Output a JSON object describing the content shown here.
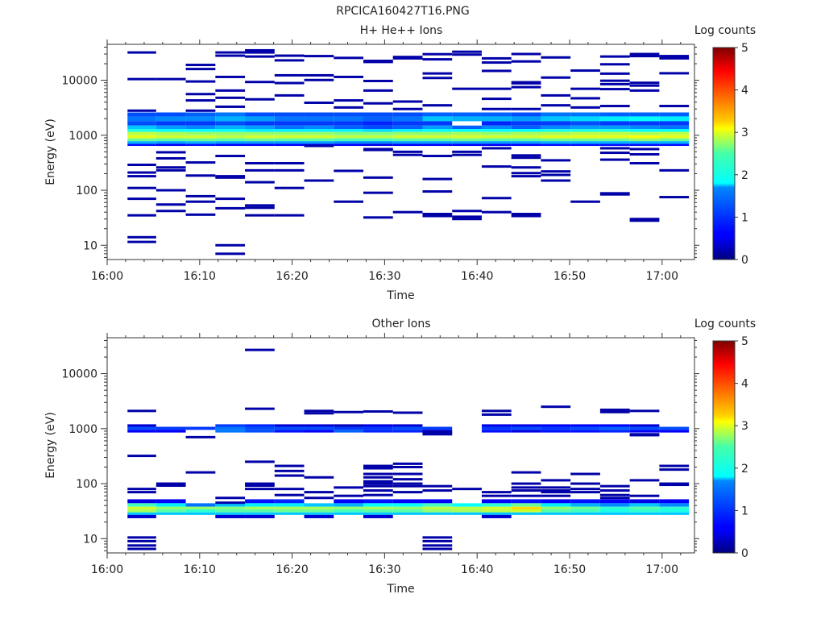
{
  "figure": {
    "title": "RPCICA160427T16.PNG"
  },
  "colorbar": {
    "label": "Log counts",
    "ticks": [
      0,
      1,
      2,
      3,
      4,
      5
    ]
  },
  "chart_data": [
    {
      "type": "heatmap",
      "title": "H+ He++ Ions",
      "xlabel": "Time",
      "ylabel": "Energy (eV)",
      "x_ticks": [
        "16:00",
        "16:10",
        "16:20",
        "16:30",
        "16:40",
        "16:50",
        "17:00"
      ],
      "y_ticks": [
        "10",
        "100",
        "1000",
        "10000"
      ],
      "ylim": [
        5.5,
        45000
      ],
      "yscale": "log",
      "color_scale": "log counts 0-5 (jet)",
      "time_bins_minutes": [
        [
          2.2,
          5.3
        ],
        [
          5.3,
          8.5
        ],
        [
          8.5,
          11.7
        ],
        [
          11.7,
          14.9
        ],
        [
          14.9,
          18.1
        ],
        [
          18.1,
          21.3
        ],
        [
          21.3,
          24.5
        ],
        [
          24.5,
          27.7
        ],
        [
          27.7,
          30.9
        ],
        [
          30.9,
          34.1
        ],
        [
          34.1,
          37.3
        ],
        [
          37.3,
          40.5
        ],
        [
          40.5,
          43.7
        ],
        [
          43.7,
          46.9
        ],
        [
          46.9,
          50.1
        ],
        [
          50.1,
          53.3
        ],
        [
          53.3,
          56.5
        ],
        [
          56.5,
          59.7
        ],
        [
          59.7,
          62.9
        ]
      ],
      "band_levels": [
        {
          "energy_range_eV": [
            2200,
            2600
          ],
          "level": [
            1.0,
            1.0,
            1.1,
            1.2,
            1.0,
            1.0,
            1.0,
            1.0,
            1.0,
            1.0,
            1.1,
            1.1,
            1.1,
            1.0,
            1.2,
            1.2,
            1.1,
            1.1,
            1.1
          ]
        },
        {
          "energy_range_eV": [
            1800,
            2200
          ],
          "level": [
            1.2,
            1.3,
            1.3,
            1.5,
            1.4,
            1.2,
            1.2,
            1.2,
            1.1,
            1.2,
            1.6,
            1.5,
            1.5,
            1.4,
            1.6,
            1.7,
            1.8,
            1.9,
            1.8
          ]
        },
        {
          "energy_range_eV": [
            1500,
            1800
          ],
          "level": [
            1.0,
            0.9,
            0.9,
            1.0,
            0.9,
            0.9,
            0.9,
            0.9,
            0.8,
            0.9,
            0.9,
            0.0,
            0.8,
            0.9,
            0.9,
            1.0,
            0.9,
            0.9,
            0.9
          ]
        },
        {
          "energy_range_eV": [
            1300,
            1500
          ],
          "level": [
            1.6,
            1.4,
            1.3,
            1.5,
            1.4,
            1.2,
            1.3,
            1.1,
            1.0,
            1.1,
            1.4,
            1.1,
            1.3,
            1.1,
            1.3,
            1.4,
            1.4,
            1.3,
            1.2
          ]
        },
        {
          "energy_range_eV": [
            1150,
            1300
          ],
          "level": [
            2.0,
            1.9,
            1.9,
            1.9,
            1.8,
            1.8,
            1.8,
            1.8,
            1.7,
            1.8,
            1.9,
            1.9,
            1.9,
            1.9,
            2.0,
            2.0,
            2.0,
            1.9,
            1.9
          ]
        },
        {
          "energy_range_eV": [
            1000,
            1150
          ],
          "level": [
            2.8,
            2.7,
            2.6,
            2.6,
            2.6,
            2.6,
            2.6,
            2.5,
            2.5,
            2.6,
            2.6,
            2.7,
            2.6,
            2.7,
            2.7,
            2.8,
            2.8,
            2.7,
            2.8
          ]
        },
        {
          "energy_range_eV": [
            880,
            1000
          ],
          "level": [
            3.0,
            2.9,
            2.9,
            2.8,
            2.9,
            2.9,
            2.9,
            2.8,
            2.8,
            2.9,
            2.9,
            2.9,
            2.9,
            2.9,
            3.0,
            3.0,
            3.0,
            3.1,
            3.0
          ]
        },
        {
          "energy_range_eV": [
            780,
            880
          ],
          "level": [
            2.4,
            2.3,
            2.4,
            2.3,
            2.4,
            2.3,
            2.3,
            2.2,
            2.2,
            2.3,
            2.3,
            2.4,
            2.3,
            2.3,
            2.4,
            2.4,
            2.4,
            2.6,
            2.4
          ]
        },
        {
          "energy_range_eV": [
            700,
            780
          ],
          "level": [
            1.5,
            1.4,
            1.5,
            1.4,
            1.4,
            1.4,
            1.4,
            1.3,
            1.3,
            1.4,
            1.4,
            1.4,
            1.4,
            1.4,
            1.5,
            1.5,
            1.5,
            1.5,
            1.5
          ]
        },
        {
          "energy_range_eV": [
            640,
            700
          ],
          "level": [
            0.7,
            0.6,
            0.7,
            0.6,
            0.6,
            0.6,
            0.6,
            0.6,
            0.5,
            0.6,
            0.6,
            0.6,
            0.6,
            0.6,
            0.7,
            0.7,
            0.7,
            0.7,
            0.7
          ]
        }
      ],
      "sparse_level": 0.2,
      "sparse_rows": [
        {
          "bin": 0,
          "energies_eV": [
            32000,
            10500,
            2800,
            290,
            210,
            180,
            110,
            70,
            35,
            14,
            11.5
          ]
        },
        {
          "bin": 1,
          "energies_eV": [
            10500,
            490,
            380,
            260,
            230,
            100,
            55,
            42
          ]
        },
        {
          "bin": 2,
          "energies_eV": [
            19000,
            16000,
            9500,
            5600,
            4300,
            2800,
            320,
            185,
            78,
            62,
            36
          ]
        },
        {
          "bin": 3,
          "energies_eV": [
            32000,
            28000,
            11500,
            6500,
            4800,
            3300,
            420,
            180,
            170,
            70,
            47,
            10,
            7
          ]
        },
        {
          "bin": 4,
          "energies_eV": [
            35000,
            32000,
            27000,
            9300,
            4500,
            310,
            230,
            140,
            53,
            48,
            35
          ]
        },
        {
          "bin": 5,
          "energies_eV": [
            28000,
            23000,
            12300,
            8900,
            5300,
            310,
            230,
            110,
            35
          ]
        },
        {
          "bin": 6,
          "energies_eV": [
            27500,
            12300,
            10100,
            3900,
            640,
            150
          ]
        },
        {
          "bin": 7,
          "energies_eV": [
            25500,
            11500,
            4300,
            3200,
            225,
            62
          ]
        },
        {
          "bin": 8,
          "energies_eV": [
            22500,
            21500,
            9700,
            6500,
            3800,
            560,
            540,
            170,
            90,
            32
          ]
        },
        {
          "bin": 9,
          "energies_eV": [
            26500,
            25000,
            4100,
            3000,
            500,
            440,
            40
          ]
        },
        {
          "bin": 10,
          "energies_eV": [
            29800,
            24000,
            13300,
            11000,
            3500,
            420,
            160,
            95,
            37,
            34
          ]
        },
        {
          "bin": 11,
          "energies_eV": [
            33000,
            29300,
            7000,
            500,
            440,
            42,
            33,
            30
          ]
        },
        {
          "bin": 12,
          "energies_eV": [
            25000,
            21000,
            14800,
            7000,
            4600,
            3000,
            580,
            270,
            72,
            40
          ]
        },
        {
          "bin": 13,
          "energies_eV": [
            30000,
            22000,
            9200,
            8800,
            7500,
            3000,
            430,
            390,
            260,
            205,
            180,
            37,
            34
          ]
        },
        {
          "bin": 14,
          "energies_eV": [
            26000,
            11200,
            5300,
            3500,
            350,
            220,
            190,
            150
          ]
        },
        {
          "bin": 15,
          "energies_eV": [
            15000,
            7000,
            4700,
            3200,
            62
          ]
        },
        {
          "bin": 16,
          "energies_eV": [
            27000,
            19500,
            13200,
            9800,
            8500,
            6900,
            3400,
            580,
            480,
            360,
            88,
            84
          ]
        },
        {
          "bin": 17,
          "energies_eV": [
            30000,
            27500,
            9000,
            8000,
            6500,
            560,
            450,
            310,
            30,
            28
          ]
        },
        {
          "bin": 18,
          "energies_eV": [
            27500,
            25000,
            13400,
            3400,
            230,
            75
          ]
        }
      ]
    },
    {
      "type": "heatmap",
      "title": "Other Ions",
      "xlabel": "Time",
      "ylabel": "Energy (eV)",
      "x_ticks": [
        "16:00",
        "16:10",
        "16:20",
        "16:30",
        "16:40",
        "16:50",
        "17:00"
      ],
      "y_ticks": [
        "10",
        "100",
        "1000",
        "10000"
      ],
      "ylim": [
        5.5,
        45000
      ],
      "yscale": "log",
      "color_scale": "log counts 0-5 (jet)",
      "time_bins_minutes": [
        [
          2.2,
          5.3
        ],
        [
          5.3,
          8.5
        ],
        [
          8.5,
          11.7
        ],
        [
          11.7,
          14.9
        ],
        [
          14.9,
          18.1
        ],
        [
          18.1,
          21.3
        ],
        [
          21.3,
          24.5
        ],
        [
          24.5,
          27.7
        ],
        [
          27.7,
          30.9
        ],
        [
          30.9,
          34.1
        ],
        [
          34.1,
          37.3
        ],
        [
          37.3,
          40.5
        ],
        [
          40.5,
          43.7
        ],
        [
          43.7,
          46.9
        ],
        [
          46.9,
          50.1
        ],
        [
          50.1,
          53.3
        ],
        [
          53.3,
          56.5
        ],
        [
          56.5,
          59.7
        ],
        [
          59.7,
          62.9
        ]
      ],
      "band_levels": [
        {
          "energy_range_eV": [
            1080,
            1200
          ],
          "level": [
            0.4,
            0.0,
            0.0,
            0.9,
            0.8,
            0.4,
            0.4,
            0.3,
            0.5,
            0.4,
            0.0,
            0.0,
            0.5,
            0.5,
            0.6,
            0.6,
            0.6,
            0.4,
            0.0
          ]
        },
        {
          "energy_range_eV": [
            950,
            1080
          ],
          "level": [
            1.0,
            0.9,
            0.9,
            1.2,
            1.0,
            1.0,
            1.0,
            0.9,
            0.9,
            1.0,
            0.9,
            0.0,
            0.9,
            1.0,
            0.9,
            1.0,
            1.1,
            1.0,
            1.0
          ]
        },
        {
          "energy_range_eV": [
            850,
            950
          ],
          "level": [
            0.6,
            0.6,
            0.0,
            1.2,
            1.0,
            0.7,
            0.6,
            1.1,
            0.8,
            0.8,
            0.3,
            0.0,
            0.7,
            0.5,
            0.7,
            0.7,
            0.8,
            0.6,
            0.6
          ]
        },
        {
          "energy_range_eV": [
            44,
            52
          ],
          "level": [
            0.5,
            0.6,
            0.0,
            0.0,
            0.7,
            0.8,
            0.0,
            0.6,
            0.7,
            0.6,
            0.6,
            0.0,
            0.6,
            0.7,
            0.6,
            0.7,
            0.6,
            0.5,
            0.6
          ]
        },
        {
          "energy_range_eV": [
            38,
            44
          ],
          "level": [
            2.2,
            1.8,
            1.2,
            1.6,
            1.8,
            1.8,
            1.6,
            1.5,
            1.9,
            1.9,
            2.2,
            1.9,
            2.1,
            2.4,
            1.8,
            1.5,
            1.3,
            1.6,
            1.3
          ]
        },
        {
          "energy_range_eV": [
            34,
            38
          ],
          "level": [
            2.9,
            2.6,
            2.6,
            2.5,
            2.7,
            2.7,
            2.7,
            2.6,
            2.7,
            2.6,
            2.8,
            2.8,
            2.9,
            3.3,
            2.6,
            2.4,
            2.1,
            2.3,
            2.1
          ]
        },
        {
          "energy_range_eV": [
            30,
            34
          ],
          "level": [
            2.7,
            2.3,
            2.1,
            2.3,
            2.3,
            2.4,
            2.4,
            2.2,
            2.3,
            2.3,
            2.6,
            2.7,
            2.8,
            2.9,
            2.3,
            2.2,
            2.0,
            2.1,
            2.0
          ]
        },
        {
          "energy_range_eV": [
            27,
            30
          ],
          "level": [
            1.6,
            1.6,
            1.6,
            1.6,
            1.6,
            1.6,
            1.6,
            1.6,
            1.6,
            1.6,
            1.6,
            1.6,
            1.6,
            1.6,
            1.6,
            1.6,
            1.6,
            1.6,
            1.6
          ]
        },
        {
          "energy_range_eV": [
            23.5,
            27
          ],
          "level": [
            0.4,
            0.0,
            0.0,
            0.4,
            0.4,
            0.0,
            0.4,
            0.0,
            0.4,
            0.0,
            0.0,
            0.0,
            0.4,
            0.0,
            0.0,
            0.0,
            0.0,
            0.0,
            0.0
          ]
        }
      ],
      "sparse_level": 0.2,
      "sparse_rows": [
        {
          "bin": 0,
          "energies_eV": [
            2100,
            320,
            80,
            70,
            10.5,
            9,
            7.5,
            6.5
          ]
        },
        {
          "bin": 1,
          "energies_eV": [
            100,
            92
          ]
        },
        {
          "bin": 2,
          "energies_eV": [
            700,
            160
          ]
        },
        {
          "bin": 3,
          "energies_eV": [
            55,
            45
          ]
        },
        {
          "bin": 4,
          "energies_eV": [
            27000,
            2300,
            250,
            100,
            92,
            80
          ]
        },
        {
          "bin": 5,
          "energies_eV": [
            210,
            170,
            140,
            80,
            62
          ]
        },
        {
          "bin": 6,
          "energies_eV": [
            2100,
            1900,
            130,
            70,
            55
          ]
        },
        {
          "bin": 7,
          "energies_eV": [
            2000,
            85,
            60
          ]
        },
        {
          "bin": 8,
          "energies_eV": [
            2050,
            210,
            190,
            150,
            130,
            110,
            100,
            90,
            75,
            62
          ]
        },
        {
          "bin": 9,
          "energies_eV": [
            1950,
            230,
            200,
            150,
            120,
            100,
            90,
            70
          ]
        },
        {
          "bin": 10,
          "energies_eV": [
            850,
            790,
            90,
            75,
            10.5,
            9,
            7.5,
            6.5
          ]
        },
        {
          "bin": 11,
          "energies_eV": [
            80
          ]
        },
        {
          "bin": 12,
          "energies_eV": [
            2100,
            1800,
            70,
            60
          ]
        },
        {
          "bin": 13,
          "energies_eV": [
            160,
            100,
            85,
            75,
            60
          ]
        },
        {
          "bin": 14,
          "energies_eV": [
            2500,
            115,
            85,
            75,
            70,
            60
          ]
        },
        {
          "bin": 15,
          "energies_eV": [
            150,
            100,
            80,
            70
          ]
        },
        {
          "bin": 16,
          "energies_eV": [
            2200,
            2000,
            90,
            75,
            62,
            55
          ]
        },
        {
          "bin": 17,
          "energies_eV": [
            2100,
            790,
            760,
            115,
            60
          ]
        },
        {
          "bin": 18,
          "energies_eV": [
            210,
            180,
            100,
            95
          ]
        }
      ]
    }
  ]
}
